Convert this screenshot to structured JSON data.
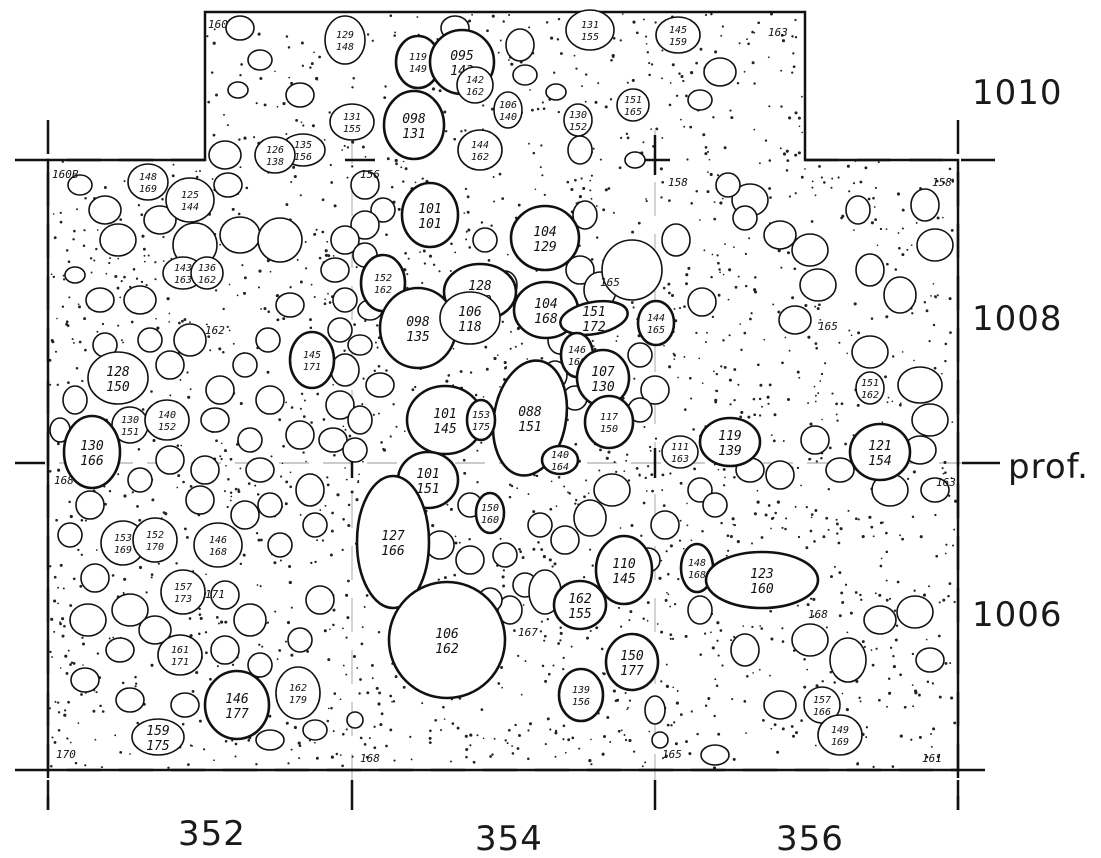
{
  "axis": {
    "x_labels": [
      "352",
      "354",
      "356"
    ],
    "y_labels": [
      "1010",
      "1008",
      "1006"
    ],
    "profile_label": "prof."
  },
  "corner_elevations": [
    "160",
    "163",
    "160B",
    "158",
    "158",
    "156",
    "170",
    "168",
    "165",
    "161",
    "163",
    "168"
  ],
  "stones": [
    {
      "id": "s01",
      "top": "129",
      "bottom": "148"
    },
    {
      "id": "s02",
      "top": "119",
      "bottom": "149"
    },
    {
      "id": "s03",
      "top": "095",
      "bottom": "143"
    },
    {
      "id": "s04",
      "top": "131",
      "bottom": "155"
    },
    {
      "id": "s05",
      "top": "145",
      "bottom": "159"
    },
    {
      "id": "s06",
      "top": "098",
      "bottom": "131"
    },
    {
      "id": "s07",
      "top": "142",
      "bottom": "162"
    },
    {
      "id": "s08",
      "top": "106",
      "bottom": "140"
    },
    {
      "id": "s09",
      "top": "130",
      "bottom": "152"
    },
    {
      "id": "s10",
      "top": "151",
      "bottom": "165"
    },
    {
      "id": "s11",
      "top": "131",
      "bottom": "155"
    },
    {
      "id": "s12",
      "top": "135",
      "bottom": "156"
    },
    {
      "id": "s13",
      "top": "126",
      "bottom": "138"
    },
    {
      "id": "s14",
      "top": "144",
      "bottom": "162"
    },
    {
      "id": "s15",
      "top": "148",
      "bottom": "169"
    },
    {
      "id": "s16",
      "top": "125",
      "bottom": "144"
    },
    {
      "id": "s17",
      "top": "101",
      "bottom": "101"
    },
    {
      "id": "s18",
      "top": "104",
      "bottom": "129"
    },
    {
      "id": "s19",
      "top": "143",
      "bottom": "163"
    },
    {
      "id": "s20",
      "top": "136",
      "bottom": "162"
    },
    {
      "id": "s21",
      "top": "152",
      "bottom": "162"
    },
    {
      "id": "s22",
      "top": "128",
      "bottom": "162"
    },
    {
      "id": "s23",
      "top": "098",
      "bottom": "135"
    },
    {
      "id": "s24",
      "top": "106",
      "bottom": "118"
    },
    {
      "id": "s25",
      "top": "104",
      "bottom": "168"
    },
    {
      "id": "s26",
      "top": "151",
      "bottom": "172"
    },
    {
      "id": "s27",
      "top": "144",
      "bottom": "165"
    },
    {
      "id": "s28",
      "top": "145",
      "bottom": "171"
    },
    {
      "id": "s29",
      "top": "146",
      "bottom": "160"
    },
    {
      "id": "s30",
      "top": "128",
      "bottom": "150"
    },
    {
      "id": "s31",
      "top": "107",
      "bottom": "130"
    },
    {
      "id": "s32",
      "top": "088",
      "bottom": "151"
    },
    {
      "id": "s33",
      "top": "101",
      "bottom": "145"
    },
    {
      "id": "s34",
      "top": "153",
      "bottom": "175"
    },
    {
      "id": "s35",
      "top": "117",
      "bottom": "150"
    },
    {
      "id": "s36",
      "top": "119",
      "bottom": "139"
    },
    {
      "id": "s37",
      "top": "151",
      "bottom": "162"
    },
    {
      "id": "s38",
      "top": "130",
      "bottom": "151"
    },
    {
      "id": "s39",
      "top": "140",
      "bottom": "152"
    },
    {
      "id": "s40",
      "top": "130",
      "bottom": "166"
    },
    {
      "id": "s41",
      "top": "121",
      "bottom": "154"
    },
    {
      "id": "s42",
      "top": "101",
      "bottom": "151"
    },
    {
      "id": "s43",
      "top": "140",
      "bottom": "164"
    },
    {
      "id": "s44",
      "top": "111",
      "bottom": "163"
    },
    {
      "id": "s45",
      "top": "127",
      "bottom": "166"
    },
    {
      "id": "s46",
      "top": "150",
      "bottom": "160"
    },
    {
      "id": "s47",
      "top": "153",
      "bottom": "169"
    },
    {
      "id": "s48",
      "top": "152",
      "bottom": "170"
    },
    {
      "id": "s49",
      "top": "146",
      "bottom": "168"
    },
    {
      "id": "s50",
      "top": "110",
      "bottom": "145"
    },
    {
      "id": "s51",
      "top": "148",
      "bottom": "168"
    },
    {
      "id": "s52",
      "top": "123",
      "bottom": "160"
    },
    {
      "id": "s53",
      "top": "157",
      "bottom": "173"
    },
    {
      "id": "s54",
      "top": "162",
      "bottom": "155"
    },
    {
      "id": "s55",
      "top": "106",
      "bottom": "162"
    },
    {
      "id": "s56",
      "top": "150",
      "bottom": "177"
    },
    {
      "id": "s57",
      "top": "161",
      "bottom": "171"
    },
    {
      "id": "s58",
      "top": "146",
      "bottom": "177"
    },
    {
      "id": "s59",
      "top": "162",
      "bottom": "179"
    },
    {
      "id": "s60",
      "top": "139",
      "bottom": "156"
    },
    {
      "id": "s61",
      "top": "157",
      "bottom": "166"
    },
    {
      "id": "s62",
      "top": "149",
      "bottom": "169"
    },
    {
      "id": "s63",
      "top": "159",
      "bottom": "175"
    }
  ],
  "misc_labels": [
    "162",
    "165",
    "171",
    "167",
    "168",
    "165"
  ]
}
